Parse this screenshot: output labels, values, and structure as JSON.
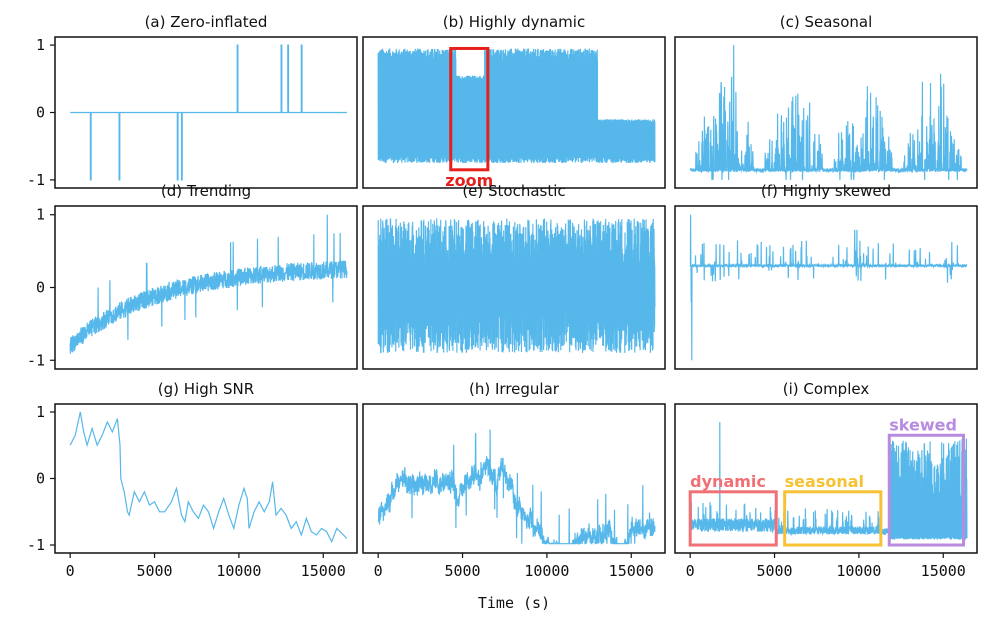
{
  "figure": {
    "xlabel": "Time (s)",
    "line_color": "#56b8ea"
  },
  "chart_data": [
    {
      "type": "line",
      "title": "(a) Zero-inflated",
      "xlim": [
        0,
        16500
      ],
      "ylim": [
        -1,
        1
      ],
      "yticks": [
        1,
        0,
        -1
      ],
      "xticks": [],
      "pattern": "zero",
      "description_values": {
        "baseline": 0,
        "spikes_up_at": [
          9900,
          12500,
          12900,
          13700
        ],
        "spikes_down_at": [
          1200,
          2900,
          6350,
          6600
        ]
      },
      "annotations": []
    },
    {
      "type": "line",
      "title": "(b) Highly dynamic",
      "xlim": [
        0,
        16500
      ],
      "ylim": [
        -1,
        1
      ],
      "yticks": [],
      "xticks": [],
      "pattern": "dynamic",
      "description_values": {
        "high_range": [
          -0.75,
          0.95
        ],
        "high_until": 13000,
        "low_range": [
          -0.75,
          -0.05
        ]
      },
      "annotations": [
        {
          "label": "zoom",
          "x0": 4300,
          "x1": 6500,
          "y0": -0.85,
          "y1": 0.95,
          "color": "#e8201c"
        }
      ]
    },
    {
      "type": "line",
      "title": "(c) Seasonal",
      "xlim": [
        0,
        16500
      ],
      "ylim": [
        -1,
        1
      ],
      "yticks": [],
      "xticks": [],
      "pattern": "seasonal",
      "description_values": {
        "baseline": -0.88,
        "peak": 1.0
      },
      "annotations": []
    },
    {
      "type": "line",
      "title": "(d) Trending",
      "xlim": [
        0,
        16500
      ],
      "ylim": [
        -1,
        1
      ],
      "yticks": [
        1,
        0,
        -1
      ],
      "xticks": [],
      "pattern": "trend",
      "description_values": {
        "start": -0.8,
        "end": 0.3
      },
      "annotations": []
    },
    {
      "type": "line",
      "title": "(e) Stochastic",
      "xlim": [
        0,
        16500
      ],
      "ylim": [
        -1,
        1
      ],
      "yticks": [],
      "xticks": [],
      "pattern": "stochastic",
      "description_values": {
        "range": [
          -0.95,
          0.95
        ]
      },
      "annotations": []
    },
    {
      "type": "line",
      "title": "(f) Highly skewed",
      "xlim": [
        0,
        16500
      ],
      "ylim": [
        -1,
        1
      ],
      "yticks": [],
      "xticks": [],
      "pattern": "skewed",
      "description_values": {
        "baseline": 0.3,
        "min": -1.0,
        "max": 1.0
      },
      "annotations": []
    },
    {
      "type": "line",
      "title": "(g) High SNR",
      "xlim": [
        0,
        16500
      ],
      "ylim": [
        -1,
        1
      ],
      "yticks": [
        1,
        0,
        -1
      ],
      "xticks": [
        0,
        5000,
        10000,
        15000
      ],
      "pattern": "snr",
      "points": [
        [
          0,
          0.5
        ],
        [
          300,
          0.65
        ],
        [
          600,
          1.0
        ],
        [
          800,
          0.7
        ],
        [
          1000,
          0.5
        ],
        [
          1300,
          0.75
        ],
        [
          1600,
          0.5
        ],
        [
          1900,
          0.65
        ],
        [
          2200,
          0.85
        ],
        [
          2500,
          0.7
        ],
        [
          2800,
          0.9
        ],
        [
          2950,
          0.5
        ],
        [
          3000,
          0.0
        ],
        [
          3200,
          -0.2
        ],
        [
          3400,
          -0.5
        ],
        [
          3500,
          -0.55
        ],
        [
          3800,
          -0.2
        ],
        [
          4100,
          -0.35
        ],
        [
          4400,
          -0.2
        ],
        [
          4700,
          -0.4
        ],
        [
          5000,
          -0.35
        ],
        [
          5300,
          -0.5
        ],
        [
          5600,
          -0.5
        ],
        [
          6000,
          -0.35
        ],
        [
          6300,
          -0.15
        ],
        [
          6600,
          -0.55
        ],
        [
          6800,
          -0.65
        ],
        [
          7000,
          -0.35
        ],
        [
          7300,
          -0.5
        ],
        [
          7600,
          -0.6
        ],
        [
          7900,
          -0.4
        ],
        [
          8200,
          -0.5
        ],
        [
          8500,
          -0.75
        ],
        [
          8800,
          -0.5
        ],
        [
          9100,
          -0.3
        ],
        [
          9400,
          -0.55
        ],
        [
          9700,
          -0.75
        ],
        [
          10000,
          -0.4
        ],
        [
          10300,
          -0.15
        ],
        [
          10500,
          -0.3
        ],
        [
          10600,
          -0.75
        ],
        [
          10900,
          -0.5
        ],
        [
          11200,
          -0.35
        ],
        [
          11500,
          -0.5
        ],
        [
          11800,
          -0.35
        ],
        [
          12000,
          -0.05
        ],
        [
          12200,
          -0.55
        ],
        [
          12500,
          -0.45
        ],
        [
          12800,
          -0.55
        ],
        [
          13100,
          -0.75
        ],
        [
          13400,
          -0.65
        ],
        [
          13700,
          -0.85
        ],
        [
          14000,
          -0.6
        ],
        [
          14300,
          -0.8
        ],
        [
          14600,
          -0.85
        ],
        [
          14900,
          -0.75
        ],
        [
          15200,
          -0.8
        ],
        [
          15500,
          -0.95
        ],
        [
          15800,
          -0.75
        ],
        [
          16200,
          -0.85
        ],
        [
          16400,
          -0.9
        ]
      ],
      "annotations": []
    },
    {
      "type": "line",
      "title": "(h) Irregular",
      "xlim": [
        0,
        16500
      ],
      "ylim": [
        -1,
        1
      ],
      "yticks": [],
      "xticks": [
        0,
        5000,
        10000,
        15000
      ],
      "pattern": "irregular",
      "description_values": {
        "range": [
          -0.95,
          0.95
        ]
      },
      "annotations": []
    },
    {
      "type": "line",
      "title": "(i) Complex",
      "xlim": [
        0,
        16500
      ],
      "ylim": [
        -1,
        1
      ],
      "yticks": [],
      "xticks": [
        0,
        5000,
        10000,
        15000
      ],
      "pattern": "complex",
      "description_values": {
        "baseline": -0.7
      },
      "annotations": [
        {
          "label": "dynamic",
          "x0": 0,
          "x1": 5100,
          "y0": -1.0,
          "y1": -0.2,
          "color": "#f07076"
        },
        {
          "label": "seasonal",
          "x0": 5600,
          "x1": 11300,
          "y0": -1.0,
          "y1": -0.2,
          "color": "#f6c234"
        },
        {
          "label": "skewed",
          "x0": 11800,
          "x1": 16200,
          "y0": -1.0,
          "y1": 0.65,
          "color": "#b88be0"
        }
      ]
    }
  ]
}
